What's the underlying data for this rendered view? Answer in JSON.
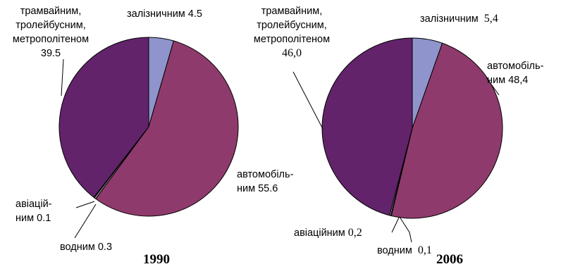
{
  "chart_data": [
    {
      "type": "pie",
      "title": "1990",
      "colors": [
        "#8f95cc",
        "#8f3a6c",
        "#a0a0a0",
        "#ffffff",
        "#62236b"
      ],
      "slices": [
        {
          "key": "rail",
          "label": "залізничним 4.5",
          "value": 4.5
        },
        {
          "key": "auto",
          "label": "автомобіль-ним 55.6",
          "value": 55.6
        },
        {
          "key": "water",
          "label": "водним 0.3",
          "value": 0.3
        },
        {
          "key": "air",
          "label": "авіацій-ним 0.1",
          "value": 0.1
        },
        {
          "key": "urban",
          "label": "трамвайним, тролейбусним, метрополітеном 39.5",
          "value": 39.5
        }
      ],
      "label_lines": {
        "rail": [
          "залізничним 4.5"
        ],
        "auto": [
          "автомобіль-",
          "ним 55.6"
        ],
        "water": [
          "водним 0.3"
        ],
        "air": [
          "авіацій-",
          "ним 0.1"
        ],
        "urban": [
          "трамвайним,",
          "тролейбусним,",
          "метрополітеном",
          "39.5"
        ]
      }
    },
    {
      "type": "pie",
      "title": "2006",
      "colors": [
        "#8f95cc",
        "#8f3a6c",
        "#a0a0a0",
        "#ffffff",
        "#62236b"
      ],
      "slices": [
        {
          "key": "rail",
          "label": "залізничним 5,4",
          "value": 5.4
        },
        {
          "key": "auto",
          "label": "автомобіль-ним 48,4",
          "value": 48.4
        },
        {
          "key": "water",
          "label": "водним 0,1",
          "value": 0.1
        },
        {
          "key": "air",
          "label": "авіаційним 0,2",
          "value": 0.2
        },
        {
          "key": "urban",
          "label": "трамвайним, тролейбусним, метрополітеном 46,0",
          "value": 46.0
        }
      ],
      "label_lines": {
        "rail": [
          "залізничним",
          "5,4"
        ],
        "auto": [
          "автомобіль-",
          "ним 48,4"
        ],
        "water": [
          "водним",
          "0,1"
        ],
        "air": [
          "авіаційним",
          "0,2"
        ],
        "urban": [
          "трамвайним,",
          "тролейбусним,",
          "метрополітеном",
          "46,0"
        ]
      }
    }
  ]
}
